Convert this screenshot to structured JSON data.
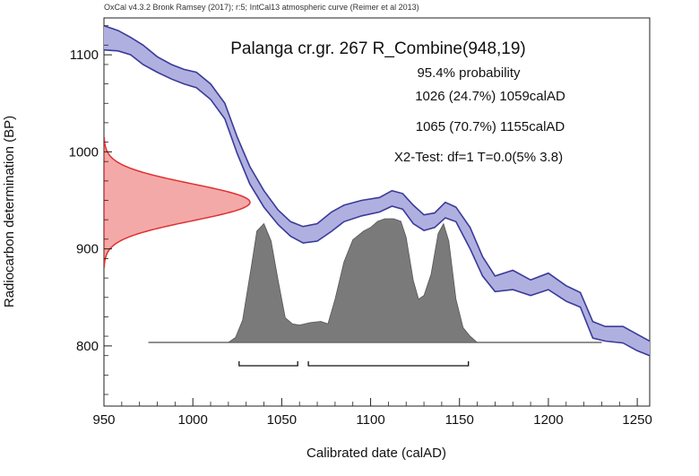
{
  "header": "OxCal v4.3.2 Bronk Ramsey (2017); r:5; IntCal13 atmospheric curve (Reimer et al 2013)",
  "chart_data": {
    "type": "area",
    "title": "Palanga cr.gr. 267 R_Combine(948,19)",
    "annotations": [
      "95.4% probability",
      "1026 (24.7%) 1059calAD",
      "1065 (70.7%) 1155calAD",
      "X2-Test: df=1 T=0.0(5% 3.8)"
    ],
    "xlabel": "Calibrated date (calAD)",
    "ylabel": "Radiocarbon determination (BP)",
    "xlim": [
      950,
      1257
    ],
    "ylim": [
      738,
      1138
    ],
    "xticks": [
      950,
      1000,
      1050,
      1100,
      1150,
      1200,
      1250
    ],
    "yticks": [
      800,
      900,
      1000,
      1100
    ],
    "colors": {
      "curve_fill": "#b0b0e0",
      "curve_stroke": "#3a3a9a",
      "measurement_fill": "#f4a9a9",
      "measurement_stroke": "#e03030",
      "posterior_fill": "#7a7a7a"
    },
    "measurement": {
      "mean": 948,
      "sigma": 19
    },
    "calibration_curve": [
      {
        "x": 950,
        "upper": 1130,
        "lower": 1105
      },
      {
        "x": 958,
        "upper": 1125,
        "lower": 1104
      },
      {
        "x": 965,
        "upper": 1118,
        "lower": 1100
      },
      {
        "x": 972,
        "upper": 1110,
        "lower": 1090
      },
      {
        "x": 980,
        "upper": 1098,
        "lower": 1082
      },
      {
        "x": 988,
        "upper": 1090,
        "lower": 1075
      },
      {
        "x": 995,
        "upper": 1085,
        "lower": 1070
      },
      {
        "x": 1002,
        "upper": 1082,
        "lower": 1066
      },
      {
        "x": 1010,
        "upper": 1070,
        "lower": 1054
      },
      {
        "x": 1018,
        "upper": 1050,
        "lower": 1034
      },
      {
        "x": 1025,
        "upper": 1015,
        "lower": 998
      },
      {
        "x": 1032,
        "upper": 985,
        "lower": 967
      },
      {
        "x": 1040,
        "upper": 960,
        "lower": 943
      },
      {
        "x": 1048,
        "upper": 940,
        "lower": 925
      },
      {
        "x": 1055,
        "upper": 928,
        "lower": 913
      },
      {
        "x": 1062,
        "upper": 923,
        "lower": 906
      },
      {
        "x": 1070,
        "upper": 926,
        "lower": 908
      },
      {
        "x": 1078,
        "upper": 938,
        "lower": 918
      },
      {
        "x": 1085,
        "upper": 945,
        "lower": 928
      },
      {
        "x": 1095,
        "upper": 950,
        "lower": 934
      },
      {
        "x": 1105,
        "upper": 953,
        "lower": 938
      },
      {
        "x": 1112,
        "upper": 960,
        "lower": 944
      },
      {
        "x": 1118,
        "upper": 957,
        "lower": 941
      },
      {
        "x": 1124,
        "upper": 945,
        "lower": 926
      },
      {
        "x": 1130,
        "upper": 935,
        "lower": 919
      },
      {
        "x": 1136,
        "upper": 937,
        "lower": 922
      },
      {
        "x": 1142,
        "upper": 948,
        "lower": 932
      },
      {
        "x": 1148,
        "upper": 943,
        "lower": 928
      },
      {
        "x": 1156,
        "upper": 922,
        "lower": 900
      },
      {
        "x": 1163,
        "upper": 892,
        "lower": 872
      },
      {
        "x": 1170,
        "upper": 872,
        "lower": 856
      },
      {
        "x": 1180,
        "upper": 878,
        "lower": 858
      },
      {
        "x": 1190,
        "upper": 868,
        "lower": 852
      },
      {
        "x": 1200,
        "upper": 875,
        "lower": 858
      },
      {
        "x": 1210,
        "upper": 862,
        "lower": 846
      },
      {
        "x": 1218,
        "upper": 855,
        "lower": 840
      },
      {
        "x": 1225,
        "upper": 825,
        "lower": 808
      },
      {
        "x": 1232,
        "upper": 820,
        "lower": 805
      },
      {
        "x": 1242,
        "upper": 820,
        "lower": 803
      },
      {
        "x": 1250,
        "upper": 812,
        "lower": 795
      },
      {
        "x": 1257,
        "upper": 805,
        "lower": 790
      }
    ],
    "posterior": [
      {
        "x": 975,
        "p": 0
      },
      {
        "x": 1020,
        "p": 0
      },
      {
        "x": 1024,
        "p": 0.04
      },
      {
        "x": 1028,
        "p": 0.18
      },
      {
        "x": 1033,
        "p": 0.62
      },
      {
        "x": 1036,
        "p": 0.9
      },
      {
        "x": 1040,
        "p": 0.96
      },
      {
        "x": 1044,
        "p": 0.82
      },
      {
        "x": 1048,
        "p": 0.5
      },
      {
        "x": 1052,
        "p": 0.2
      },
      {
        "x": 1056,
        "p": 0.15
      },
      {
        "x": 1060,
        "p": 0.14
      },
      {
        "x": 1066,
        "p": 0.16
      },
      {
        "x": 1072,
        "p": 0.17
      },
      {
        "x": 1076,
        "p": 0.15
      },
      {
        "x": 1080,
        "p": 0.35
      },
      {
        "x": 1085,
        "p": 0.65
      },
      {
        "x": 1090,
        "p": 0.83
      },
      {
        "x": 1096,
        "p": 0.9
      },
      {
        "x": 1100,
        "p": 0.93
      },
      {
        "x": 1104,
        "p": 0.98
      },
      {
        "x": 1108,
        "p": 1.0
      },
      {
        "x": 1113,
        "p": 1.0
      },
      {
        "x": 1117,
        "p": 0.98
      },
      {
        "x": 1120,
        "p": 0.85
      },
      {
        "x": 1124,
        "p": 0.5
      },
      {
        "x": 1127,
        "p": 0.35
      },
      {
        "x": 1130,
        "p": 0.38
      },
      {
        "x": 1134,
        "p": 0.55
      },
      {
        "x": 1138,
        "p": 0.88
      },
      {
        "x": 1141,
        "p": 0.96
      },
      {
        "x": 1144,
        "p": 0.82
      },
      {
        "x": 1148,
        "p": 0.35
      },
      {
        "x": 1152,
        "p": 0.12
      },
      {
        "x": 1156,
        "p": 0.05
      },
      {
        "x": 1160,
        "p": 0
      },
      {
        "x": 1230,
        "p": 0
      }
    ],
    "ranges_95": [
      {
        "from": 1026,
        "to": 1059
      },
      {
        "from": 1065,
        "to": 1155
      }
    ]
  }
}
